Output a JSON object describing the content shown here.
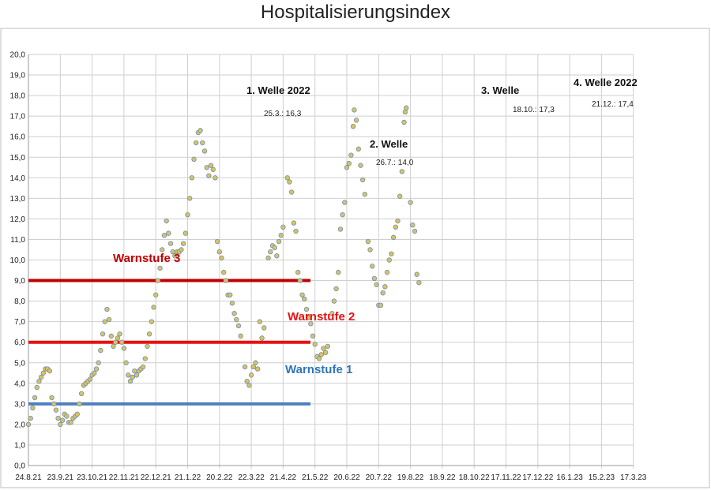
{
  "chart_data": {
    "type": "scatter",
    "title": "Hospitalisierungsindex",
    "ylim": [
      0,
      20
    ],
    "y_ticks": [
      "0,0",
      "1,0",
      "2,0",
      "3,0",
      "4,0",
      "5,0",
      "6,0",
      "7,0",
      "8,0",
      "9,0",
      "10,0",
      "11,0",
      "12,0",
      "13,0",
      "14,0",
      "15,0",
      "16,0",
      "17,0",
      "18,0",
      "19,0",
      "20,0"
    ],
    "x_ticks": [
      "24.8.21",
      "23.9.21",
      "23.10.21",
      "22.11.21",
      "22.12.21",
      "21.1.22",
      "20.2.22",
      "22.3.22",
      "21.4.22",
      "21.5.22",
      "20.6.22",
      "20.7.22",
      "19.8.22",
      "18.9.22",
      "18.10.22",
      "17.11.22",
      "17.12.22",
      "16.1.23",
      "15.2.23",
      "17.3.23"
    ],
    "grid": true,
    "marker_color": "#d9c35a",
    "marker_edge": "#6f8fbf",
    "points": [
      [
        0,
        2.0
      ],
      [
        2,
        2.3
      ],
      [
        4,
        2.8
      ],
      [
        6,
        3.3
      ],
      [
        8,
        3.8
      ],
      [
        10,
        4.1
      ],
      [
        12,
        4.3
      ],
      [
        14,
        4.5
      ],
      [
        16,
        4.7
      ],
      [
        18,
        4.7
      ],
      [
        20,
        4.6
      ],
      [
        22,
        3.3
      ],
      [
        24,
        3.0
      ],
      [
        26,
        2.7
      ],
      [
        28,
        2.3
      ],
      [
        30,
        2.0
      ],
      [
        32,
        2.2
      ],
      [
        34,
        2.5
      ],
      [
        36,
        2.4
      ],
      [
        38,
        2.1
      ],
      [
        40,
        2.1
      ],
      [
        42,
        2.3
      ],
      [
        44,
        2.4
      ],
      [
        46,
        2.5
      ],
      [
        48,
        3.0
      ],
      [
        50,
        3.5
      ],
      [
        52,
        3.9
      ],
      [
        54,
        4.0
      ],
      [
        56,
        4.1
      ],
      [
        58,
        4.2
      ],
      [
        60,
        4.4
      ],
      [
        62,
        4.5
      ],
      [
        64,
        4.7
      ],
      [
        66,
        5.0
      ],
      [
        68,
        5.6
      ],
      [
        70,
        6.4
      ],
      [
        72,
        7.0
      ],
      [
        74,
        7.6
      ],
      [
        76,
        7.1
      ],
      [
        78,
        6.3
      ],
      [
        80,
        5.8
      ],
      [
        82,
        6.0
      ],
      [
        84,
        6.2
      ],
      [
        86,
        6.4
      ],
      [
        88,
        6.0
      ],
      [
        90,
        5.7
      ],
      [
        92,
        5.0
      ],
      [
        94,
        4.4
      ],
      [
        96,
        4.1
      ],
      [
        98,
        4.3
      ],
      [
        100,
        4.6
      ],
      [
        102,
        4.4
      ],
      [
        104,
        4.6
      ],
      [
        106,
        4.7
      ],
      [
        108,
        4.8
      ],
      [
        110,
        5.2
      ],
      [
        112,
        5.8
      ],
      [
        114,
        6.4
      ],
      [
        116,
        7.0
      ],
      [
        118,
        7.7
      ],
      [
        120,
        8.3
      ],
      [
        122,
        9.0
      ],
      [
        124,
        9.6
      ],
      [
        126,
        10.5
      ],
      [
        128,
        11.2
      ],
      [
        130,
        11.9
      ],
      [
        132,
        11.3
      ],
      [
        134,
        10.8
      ],
      [
        136,
        10.4
      ],
      [
        138,
        10.2
      ],
      [
        140,
        10.4
      ],
      [
        142,
        10.4
      ],
      [
        144,
        10.5
      ],
      [
        146,
        10.8
      ],
      [
        148,
        11.3
      ],
      [
        150,
        12.2
      ],
      [
        152,
        13.0
      ],
      [
        154,
        14.0
      ],
      [
        156,
        14.9
      ],
      [
        158,
        15.7
      ],
      [
        160,
        16.2
      ],
      [
        162,
        16.3
      ],
      [
        164,
        15.7
      ],
      [
        166,
        15.3
      ],
      [
        168,
        14.5
      ],
      [
        170,
        14.1
      ],
      [
        172,
        14.6
      ],
      [
        174,
        14.4
      ],
      [
        176,
        14.0
      ],
      [
        178,
        10.9
      ],
      [
        180,
        10.4
      ],
      [
        182,
        10.1
      ],
      [
        184,
        9.4
      ],
      [
        186,
        9.0
      ],
      [
        188,
        8.3
      ],
      [
        190,
        8.3
      ],
      [
        192,
        7.9
      ],
      [
        194,
        7.4
      ],
      [
        196,
        7.1
      ],
      [
        198,
        6.8
      ],
      [
        200,
        6.3
      ],
      [
        204,
        4.8
      ],
      [
        206,
        4.1
      ],
      [
        208,
        3.9
      ],
      [
        210,
        4.4
      ],
      [
        212,
        4.8
      ],
      [
        214,
        5.0
      ],
      [
        216,
        4.7
      ],
      [
        218,
        7.0
      ],
      [
        220,
        6.2
      ],
      [
        222,
        6.7
      ],
      [
        226,
        10.1
      ],
      [
        228,
        10.4
      ],
      [
        230,
        10.7
      ],
      [
        232,
        10.6
      ],
      [
        234,
        10.2
      ],
      [
        236,
        10.9
      ],
      [
        238,
        11.2
      ],
      [
        240,
        11.6
      ],
      [
        244,
        14.0
      ],
      [
        246,
        13.8
      ],
      [
        248,
        13.3
      ],
      [
        250,
        11.8
      ],
      [
        252,
        11.4
      ],
      [
        254,
        9.4
      ],
      [
        256,
        9.0
      ],
      [
        258,
        8.3
      ],
      [
        260,
        8.1
      ],
      [
        262,
        7.6
      ],
      [
        264,
        7.2
      ],
      [
        266,
        6.9
      ],
      [
        268,
        6.3
      ],
      [
        270,
        5.9
      ],
      [
        272,
        5.3
      ],
      [
        274,
        5.2
      ],
      [
        276,
        5.4
      ],
      [
        278,
        5.7
      ],
      [
        280,
        5.5
      ],
      [
        282,
        5.8
      ],
      [
        286,
        7.4
      ],
      [
        288,
        8.0
      ],
      [
        290,
        8.6
      ],
      [
        292,
        9.4
      ],
      [
        294,
        11.5
      ],
      [
        296,
        12.2
      ],
      [
        298,
        12.8
      ],
      [
        300,
        14.5
      ],
      [
        302,
        14.7
      ],
      [
        304,
        15.1
      ],
      [
        306,
        16.5
      ],
      [
        307,
        17.3
      ],
      [
        309,
        16.8
      ],
      [
        311,
        15.4
      ],
      [
        313,
        14.6
      ],
      [
        315,
        13.9
      ],
      [
        317,
        13.2
      ],
      [
        320,
        10.9
      ],
      [
        322,
        10.5
      ],
      [
        324,
        9.7
      ],
      [
        326,
        9.1
      ],
      [
        328,
        8.8
      ],
      [
        330,
        7.8
      ],
      [
        332,
        7.8
      ],
      [
        334,
        8.4
      ],
      [
        336,
        8.7
      ],
      [
        338,
        9.4
      ],
      [
        340,
        10.0
      ],
      [
        342,
        10.3
      ],
      [
        344,
        11.1
      ],
      [
        346,
        11.6
      ],
      [
        348,
        11.9
      ],
      [
        350,
        13.1
      ],
      [
        352,
        14.3
      ],
      [
        354,
        16.7
      ],
      [
        355,
        17.2
      ],
      [
        356,
        17.4
      ],
      [
        360,
        12.8
      ],
      [
        362,
        11.7
      ],
      [
        364,
        11.4
      ],
      [
        366,
        9.3
      ],
      [
        368,
        8.9
      ]
    ],
    "reference_lines": [
      {
        "name": "Warnstufe 3",
        "value": 9.0,
        "color": "#c00000",
        "label_color": "#c00000"
      },
      {
        "name": "Warnstufe 2",
        "value": 6.0,
        "color": "#e81010",
        "label_color": "#e81010"
      },
      {
        "name": "Warnstufe 1",
        "value": 3.0,
        "color": "#4f7fc0",
        "label_color": "#2e75b6"
      }
    ],
    "annotations": [
      {
        "title": "1. Welle 2022",
        "detail": "25.3.: 16,3"
      },
      {
        "title": "2. Welle",
        "detail": "26.7.: 14,0"
      },
      {
        "title": "3. Welle",
        "detail": "18.10.: 17,3"
      },
      {
        "title": "4. Welle 2022",
        "detail": "21.12.: 17,4"
      }
    ]
  }
}
